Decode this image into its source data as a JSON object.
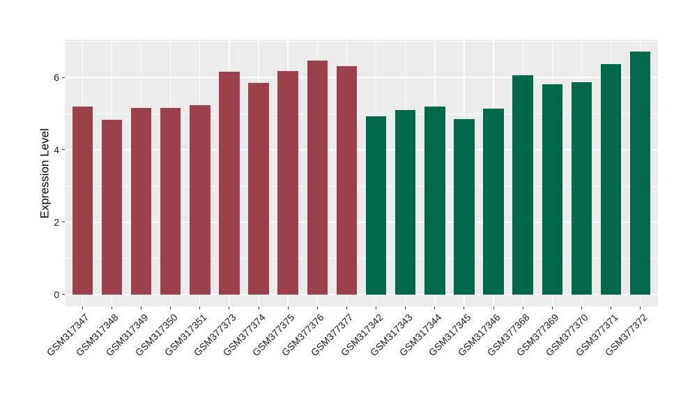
{
  "figure": {
    "background": "#FFFFFF",
    "panel_background": "#EBEBEB",
    "grid_color": "#FFFFFF",
    "tick_mark_color": "#333333",
    "axis_text_color": "#1A1A1A"
  },
  "chart_data": {
    "type": "bar",
    "title": "",
    "xlabel": "",
    "ylabel": "Expression Level",
    "ylim": [
      -0.33,
      7.04
    ],
    "yticks_major": [
      0,
      2,
      4,
      6
    ],
    "ytick_labels": [
      "0",
      "2",
      "4",
      "6"
    ],
    "yticks_minor": [
      1,
      3,
      5,
      7
    ],
    "grid": "white major+minor horizontal lines, white vertical line per category, drawn on gray panel",
    "legend_position": "none",
    "x_tick_rotation_deg": 45,
    "bar_width_fraction": 0.7,
    "group_colors": [
      "#9C404E",
      "#00684B"
    ],
    "categories": [
      "GSM317347",
      "GSM317348",
      "GSM317349",
      "GSM317350",
      "GSM317351",
      "GSM377373",
      "GSM377374",
      "GSM377375",
      "GSM377376",
      "GSM377377",
      "GSM317342",
      "GSM317343",
      "GSM317344",
      "GSM317345",
      "GSM317346",
      "GSM377368",
      "GSM377369",
      "GSM377370",
      "GSM377371",
      "GSM377372"
    ],
    "values": [
      5.2,
      4.83,
      5.16,
      5.16,
      5.24,
      6.15,
      5.85,
      6.17,
      6.47,
      6.31,
      4.92,
      5.1,
      5.2,
      4.85,
      5.14,
      6.05,
      5.8,
      5.87,
      6.37,
      6.71
    ],
    "bar_colors": [
      "#9C404E",
      "#9C404E",
      "#9C404E",
      "#9C404E",
      "#9C404E",
      "#9C404E",
      "#9C404E",
      "#9C404E",
      "#9C404E",
      "#9C404E",
      "#00684B",
      "#00684B",
      "#00684B",
      "#00684B",
      "#00684B",
      "#00684B",
      "#00684B",
      "#00684B",
      "#00684B",
      "#00684B"
    ]
  }
}
